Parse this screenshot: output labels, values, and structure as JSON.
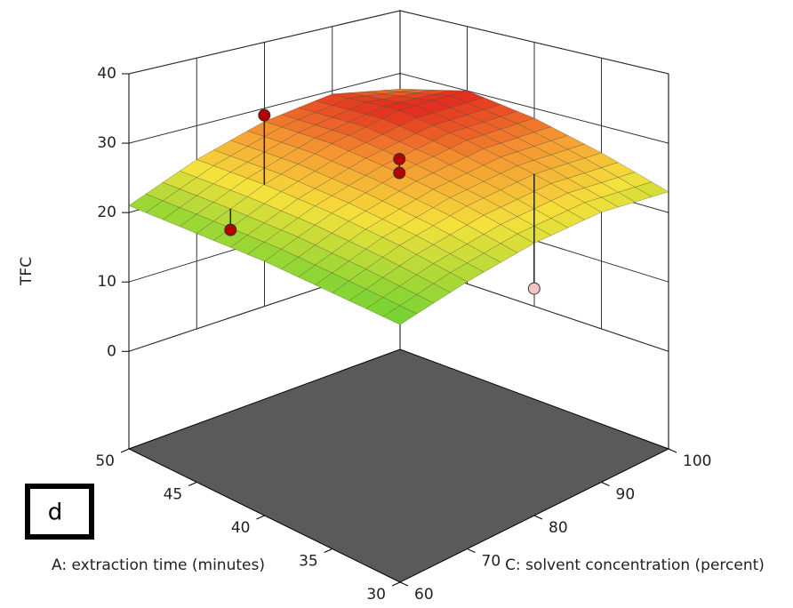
{
  "chart_data": {
    "type": "surface3d",
    "z_label": "TFC",
    "x_label": "A: extraction time (minutes)",
    "y_label": "C: solvent concentration (percent)",
    "panel_label": "d",
    "x": [
      30,
      35,
      40,
      45,
      50
    ],
    "y": [
      60,
      70,
      80,
      90,
      100
    ],
    "z": [
      [
        20,
        22,
        23.5,
        24,
        23
      ],
      [
        20.5,
        23.5,
        25.5,
        26.5,
        26
      ],
      [
        21,
        24.5,
        27,
        28.5,
        28.5
      ],
      [
        21,
        25,
        28,
        30,
        30
      ],
      [
        21,
        25,
        28,
        29.5,
        27.5
      ]
    ],
    "xlim": [
      30,
      50
    ],
    "ylim": [
      60,
      100
    ],
    "zlim": [
      0,
      40
    ],
    "xticks": [
      30,
      35,
      40,
      45,
      50
    ],
    "yticks": [
      60,
      70,
      80,
      90,
      100
    ],
    "zticks": [
      0,
      10,
      20,
      30,
      40
    ],
    "points": [
      {
        "x": 45,
        "y": 70,
        "z": 35,
        "color": "#b30000"
      },
      {
        "x": 40,
        "y": 80,
        "z": 29,
        "color": "#b30000"
      },
      {
        "x": 40,
        "y": 80,
        "z": 27,
        "color": "#b30000"
      },
      {
        "x": 45,
        "y": 65,
        "z": 20,
        "color": "#b30000"
      },
      {
        "x": 35,
        "y": 90,
        "z": 10,
        "color": "#f4c4c4"
      }
    ]
  }
}
